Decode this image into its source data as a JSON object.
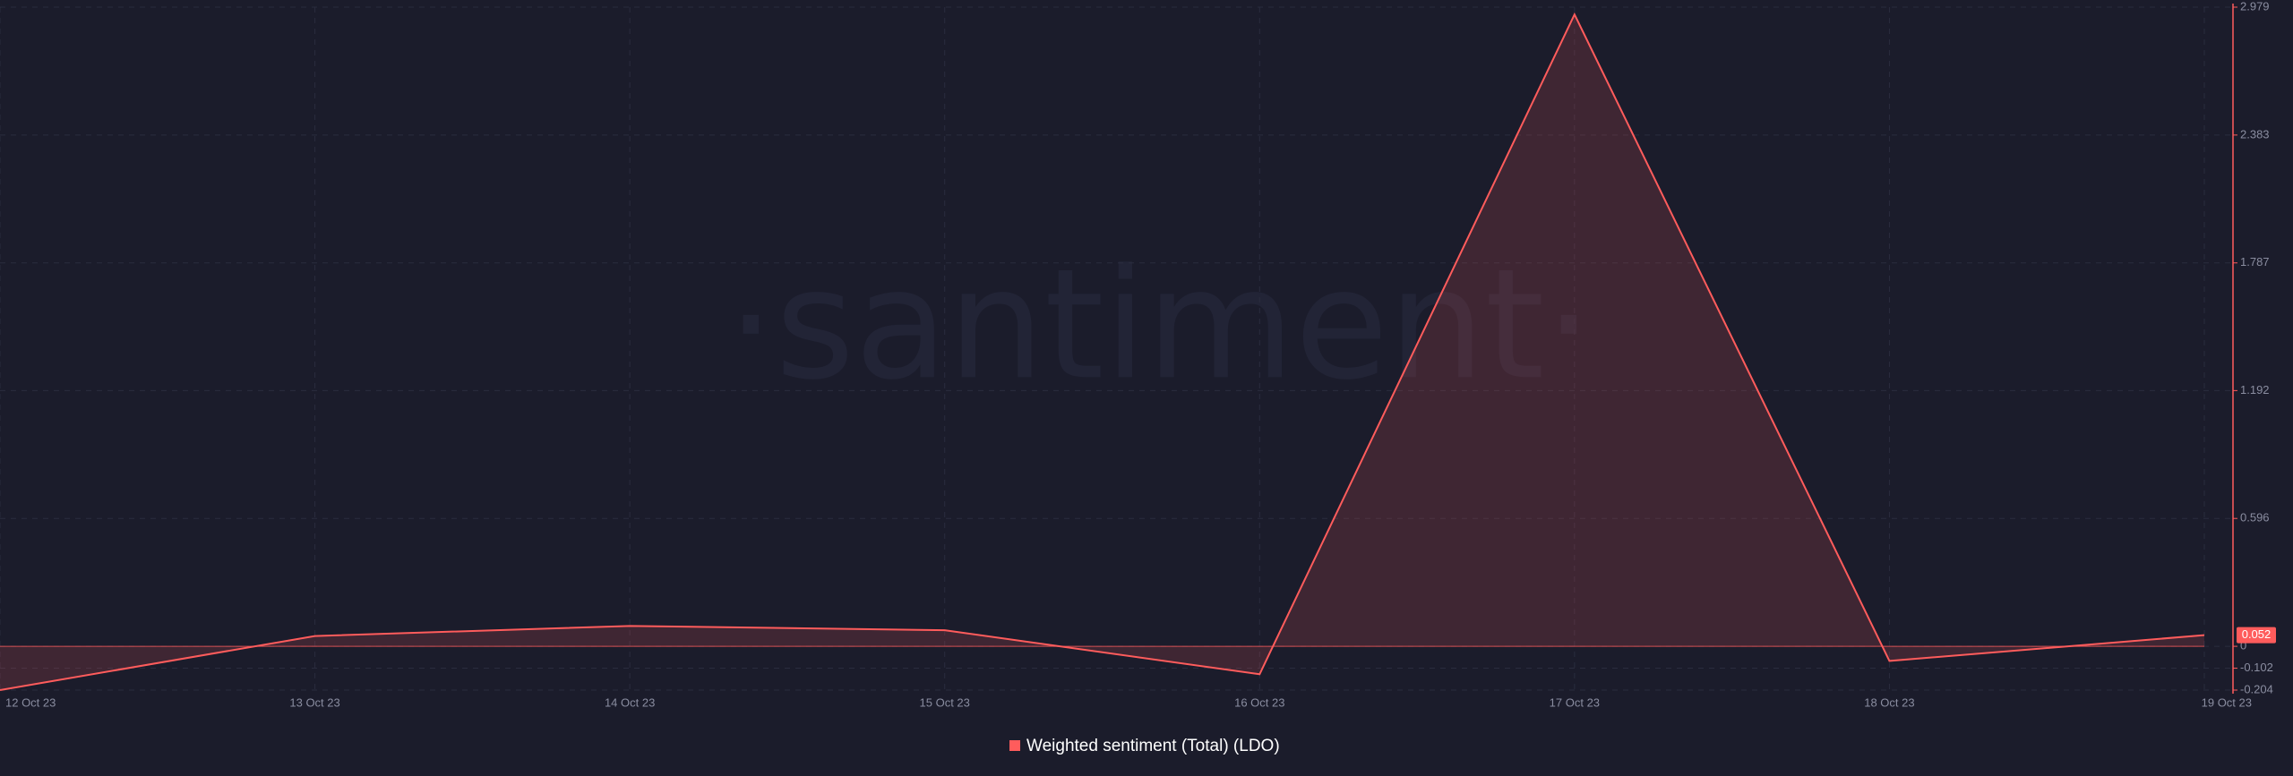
{
  "chart_data": {
    "type": "area",
    "watermark": "·santiment·",
    "categories": [
      "12 Oct 23",
      "13 Oct 23",
      "14 Oct 23",
      "15 Oct 23",
      "16 Oct 23",
      "17 Oct 23",
      "18 Oct 23",
      "19 Oct 23"
    ],
    "series": [
      {
        "name": "Weighted sentiment (Total) (LDO)",
        "color": "#ff5c5c",
        "values": [
          -0.204,
          0.048,
          0.095,
          0.075,
          -0.13,
          2.945,
          -0.068,
          0.052
        ]
      }
    ],
    "ylim": [
      -0.204,
      2.979
    ],
    "yticks": [
      -0.204,
      -0.102,
      0,
      0.596,
      1.192,
      1.787,
      2.383,
      2.979
    ],
    "grid": true
  }
}
